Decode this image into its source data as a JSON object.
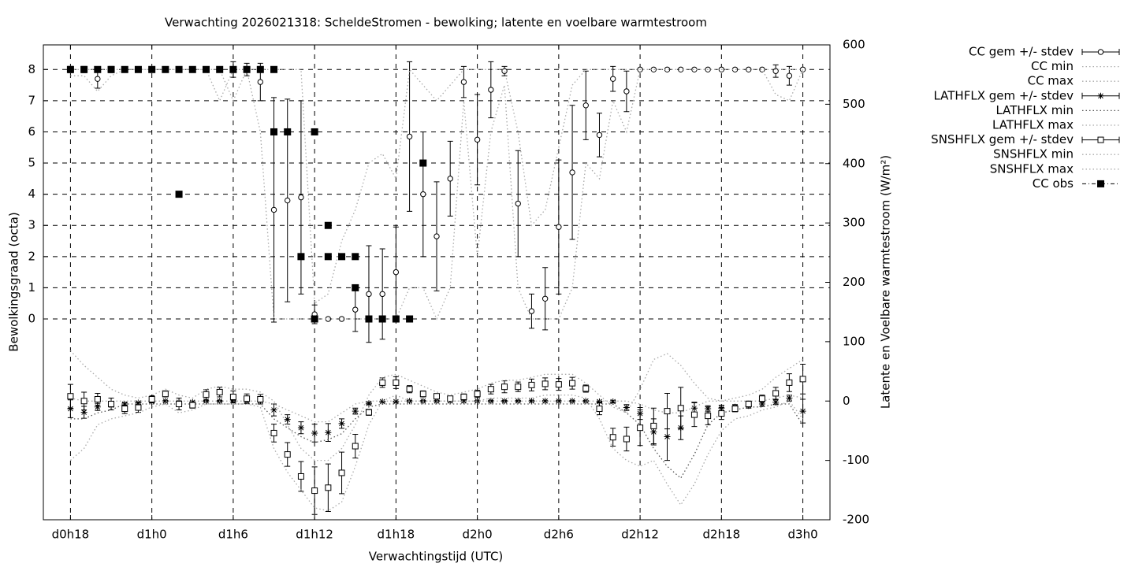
{
  "chart_data": {
    "type": "errorbar",
    "title": "Verwachting 2026021318: ScheldeStromen - bewolking; latente en voelbare warmtestroom",
    "xlabel": "Verwachtingstijd (UTC)",
    "ylabel": "Bewolkingsgraad (octa)",
    "y2label": "Latente en Voelbare warmtestroom (W/m²)",
    "xlim": [
      16,
      74
    ],
    "xticks": [
      {
        "value": 18,
        "label": "d0h18"
      },
      {
        "value": 24,
        "label": "d1h0"
      },
      {
        "value": 30,
        "label": "d1h6"
      },
      {
        "value": 36,
        "label": "d1h12"
      },
      {
        "value": 42,
        "label": "d1h18"
      },
      {
        "value": 48,
        "label": "d2h0"
      },
      {
        "value": 54,
        "label": "d2h6"
      },
      {
        "value": 60,
        "label": "d2h12"
      },
      {
        "value": 66,
        "label": "d2h18"
      },
      {
        "value": 72,
        "label": "d3h0"
      }
    ],
    "ylim": [
      -6.44,
      8.79
    ],
    "yticks": [
      0,
      1,
      2,
      3,
      4,
      5,
      6,
      7,
      8
    ],
    "y2lim": [
      -200,
      600
    ],
    "y2ticks": [
      -200,
      -100,
      0,
      100,
      200,
      300,
      400,
      500,
      600
    ],
    "grid": true,
    "legend": "outside-right",
    "x": [
      18,
      19,
      20,
      21,
      22,
      23,
      24,
      25,
      26,
      27,
      28,
      29,
      30,
      31,
      32,
      33,
      34,
      35,
      36,
      37,
      38,
      39,
      40,
      41,
      42,
      43,
      44,
      45,
      46,
      47,
      48,
      49,
      50,
      51,
      52,
      53,
      54,
      55,
      56,
      57,
      58,
      59,
      60,
      61,
      62,
      63,
      64,
      65,
      66,
      67,
      68,
      69,
      70,
      71,
      72
    ],
    "series": [
      {
        "name": "CC gem +/- stdev",
        "color": "#000000",
        "marker": "circle",
        "axis": "y",
        "values": [
          8,
          8,
          7.7,
          8,
          8,
          8,
          8,
          8,
          8,
          8,
          8,
          8,
          8,
          8,
          7.6,
          3.5,
          3.8,
          3.9,
          0.15,
          0,
          0,
          0.3,
          0.8,
          0.8,
          1.5,
          5.85,
          4,
          2.65,
          4.5,
          7.6,
          5.75,
          7.35,
          7.95,
          3.7,
          0.25,
          0.65,
          2.95,
          4.7,
          6.85,
          5.9,
          7.7,
          7.3,
          8,
          8,
          8,
          8,
          8,
          8,
          8,
          8,
          8,
          8,
          7.95,
          7.8,
          8
        ],
        "stdev": [
          0.1,
          0.1,
          0.3,
          0.1,
          0,
          0,
          0,
          0,
          0,
          0,
          0,
          0,
          0.25,
          0.2,
          0.6,
          3.6,
          3.25,
          3.1,
          0.3,
          0,
          0,
          0.7,
          1.55,
          1.45,
          1.45,
          2.4,
          2,
          1.75,
          1.2,
          0.5,
          1.45,
          0.9,
          0.15,
          1.7,
          0.55,
          1,
          2.15,
          2.15,
          1.1,
          0.7,
          0.4,
          0.65,
          0,
          0,
          0,
          0,
          0,
          0,
          0,
          0,
          0,
          0,
          0.2,
          0.3,
          0
        ]
      },
      {
        "name": "CC min",
        "color": "#aaaaaa",
        "dash": "dotted",
        "axis": "y",
        "values": [
          7.8,
          7.8,
          7.3,
          7.8,
          8,
          8,
          8,
          8,
          8,
          8,
          8,
          8,
          7,
          8,
          6,
          0,
          0,
          0,
          0,
          0,
          0,
          0,
          0,
          0,
          0,
          1,
          1,
          0,
          1,
          7,
          2,
          6,
          7.5,
          1,
          0,
          0,
          0,
          1,
          5,
          4.5,
          7,
          6,
          8,
          8,
          8,
          8,
          8,
          8,
          8,
          8,
          8,
          8,
          7.2,
          7,
          8
        ]
      },
      {
        "name": "CC max",
        "color": "#aaaaaa",
        "dash": "dotted",
        "axis": "y",
        "values": [
          8,
          8,
          8,
          8,
          8,
          8,
          8,
          8,
          8,
          8,
          8,
          7,
          8,
          8,
          8,
          8,
          8,
          8,
          0.5,
          0.8,
          2.5,
          3.5,
          5,
          5.3,
          4.5,
          8,
          7.5,
          7,
          7.5,
          8,
          8,
          8,
          8,
          6,
          3,
          3.5,
          5.5,
          7.5,
          8,
          8,
          8,
          8,
          8,
          8,
          8,
          8,
          8,
          8,
          8,
          8,
          8,
          8,
          8,
          8,
          8
        ]
      },
      {
        "name": "LATHFLX gem +/- stdev",
        "color": "#000000",
        "marker": "star",
        "axis": "y2",
        "values": [
          -13,
          -19,
          -10,
          -7,
          -5,
          -3,
          -1,
          0,
          -2,
          -2,
          0,
          0,
          0,
          0,
          0,
          -15,
          -31,
          -45,
          -54,
          -53,
          -38,
          -17,
          -4,
          -1,
          -1,
          0,
          0,
          0,
          0,
          0,
          0,
          0,
          0,
          0,
          0,
          0,
          0,
          0,
          0,
          -1,
          -1,
          -11,
          -21,
          -52,
          -60,
          -45,
          -12,
          -13,
          -12,
          -10,
          -8,
          -5,
          -2,
          5,
          -17
        ],
        "stdev": [
          15,
          10,
          6,
          3,
          2,
          2,
          1,
          1,
          2,
          2,
          1,
          1,
          1,
          1,
          1,
          10,
          8,
          10,
          15,
          15,
          8,
          5,
          2,
          1,
          1,
          1,
          1,
          1,
          1,
          1,
          1,
          1,
          1,
          1,
          1,
          1,
          1,
          1,
          1,
          1,
          2,
          5,
          10,
          22,
          40,
          20,
          10,
          5,
          5,
          4,
          4,
          4,
          4,
          5,
          20
        ]
      },
      {
        "name": "LATHFLX min",
        "color": "#555555",
        "dash": "dotted",
        "axis": "y2",
        "values": [
          -30,
          -30,
          -20,
          -15,
          -5,
          -5,
          -5,
          -5,
          -5,
          -5,
          -5,
          -5,
          -5,
          -5,
          -5,
          -30,
          -45,
          -60,
          -70,
          -65,
          -55,
          -30,
          -10,
          -5,
          -5,
          -5,
          -5,
          -5,
          -5,
          -5,
          -5,
          -5,
          -5,
          -5,
          -5,
          -5,
          -5,
          -5,
          -5,
          -5,
          -5,
          -20,
          -40,
          -80,
          -110,
          -130,
          -90,
          -40,
          -20,
          -15,
          -10,
          -10,
          -5,
          -5,
          -40
        ]
      },
      {
        "name": "LATHFLX max",
        "color": "#aaaaaa",
        "dash": "dotted",
        "axis": "y2",
        "values": [
          5,
          0,
          0,
          0,
          0,
          0,
          0,
          0,
          0,
          0,
          0,
          0,
          0,
          0,
          0,
          -5,
          -15,
          -25,
          -35,
          -35,
          -20,
          -5,
          0,
          0,
          0,
          0,
          0,
          0,
          0,
          0,
          0,
          0,
          0,
          0,
          0,
          0,
          0,
          0,
          0,
          0,
          0,
          0,
          -5,
          -15,
          -20,
          -20,
          -10,
          0,
          0,
          0,
          0,
          0,
          5,
          10,
          5
        ]
      },
      {
        "name": "SNSHFLX gem +/- stdev",
        "color": "#000000",
        "marker": "square",
        "axis": "y2",
        "values": [
          8,
          0,
          3,
          -5,
          -13,
          -11,
          3,
          12,
          -5,
          -7,
          11,
          15,
          7,
          4,
          3,
          -54,
          -90,
          -127,
          -151,
          -146,
          -121,
          -76,
          -19,
          31,
          31,
          20,
          12,
          8,
          4,
          7,
          12,
          20,
          24,
          24,
          27,
          29,
          28,
          30,
          21,
          -13,
          -61,
          -64,
          -45,
          -42,
          -17,
          -12,
          -23,
          -25,
          -21,
          -13,
          -5,
          4,
          13,
          31,
          37
        ],
        "stdev": [
          20,
          15,
          10,
          10,
          8,
          8,
          6,
          5,
          10,
          5,
          8,
          8,
          10,
          8,
          8,
          15,
          20,
          25,
          40,
          40,
          35,
          20,
          5,
          8,
          10,
          6,
          5,
          4,
          4,
          5,
          6,
          8,
          10,
          8,
          10,
          10,
          10,
          10,
          6,
          10,
          15,
          20,
          30,
          30,
          30,
          35,
          20,
          15,
          10,
          5,
          5,
          6,
          10,
          15,
          25
        ]
      },
      {
        "name": "SNSHFLX min",
        "color": "#aaaaaa",
        "dash": "dotted",
        "axis": "y2",
        "values": [
          -100,
          -80,
          -40,
          -30,
          -25,
          -20,
          -10,
          -5,
          -20,
          -15,
          -5,
          -5,
          -5,
          -5,
          -10,
          -80,
          -120,
          -150,
          -180,
          -185,
          -170,
          -110,
          -40,
          0,
          10,
          0,
          0,
          0,
          0,
          0,
          0,
          5,
          5,
          5,
          5,
          10,
          10,
          10,
          5,
          -30,
          -80,
          -100,
          -110,
          -100,
          -140,
          -175,
          -140,
          -90,
          -50,
          -30,
          -25,
          -15,
          -10,
          0,
          -30
        ]
      },
      {
        "name": "SNSHFLX max",
        "color": "#aaaaaa",
        "dash": "dotted",
        "axis": "y2",
        "values": [
          85,
          60,
          40,
          20,
          10,
          5,
          10,
          20,
          10,
          5,
          20,
          25,
          20,
          20,
          15,
          0,
          -40,
          -80,
          -100,
          -100,
          -80,
          -40,
          10,
          40,
          45,
          35,
          25,
          15,
          10,
          15,
          20,
          30,
          35,
          35,
          40,
          45,
          45,
          45,
          30,
          10,
          -10,
          -20,
          20,
          70,
          80,
          60,
          30,
          5,
          0,
          5,
          10,
          20,
          40,
          55,
          70
        ]
      },
      {
        "name": "CC obs",
        "color": "#000000",
        "marker": "filled-square",
        "axis": "y",
        "x": [
          18,
          19,
          20,
          21,
          22,
          23,
          24,
          25,
          26,
          26,
          27,
          28,
          29,
          30,
          31,
          32,
          33,
          33,
          34,
          35,
          36,
          36,
          37,
          37,
          38,
          39,
          39,
          40,
          41,
          42,
          43,
          44
        ],
        "values": [
          8,
          8,
          8,
          8,
          8,
          8,
          8,
          8,
          8,
          4,
          8,
          8,
          8,
          8,
          8,
          8,
          8,
          6,
          6,
          2,
          6,
          0,
          3,
          2,
          2,
          2,
          1,
          0,
          0,
          0,
          0,
          5
        ]
      }
    ]
  }
}
